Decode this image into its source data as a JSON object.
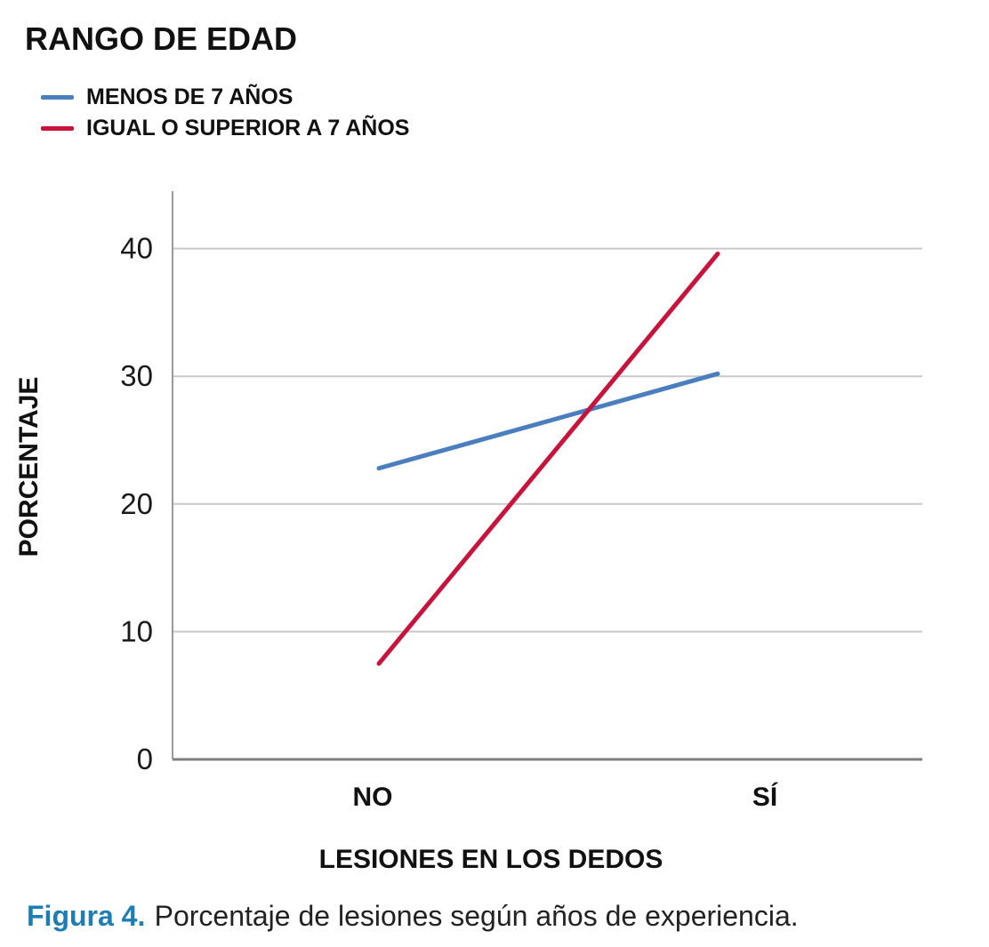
{
  "figure": {
    "caption_prefix": "Figura 4.",
    "caption_text": "Porcentaje de lesiones según años de experiencia."
  },
  "colors": {
    "grid": "#c9c9c9",
    "y_axis": "#9a9a9a",
    "x_axis": "#7e7e7e",
    "caption_accent": "#1e7eb4",
    "series_blue": "#4a7ebd",
    "series_red": "#c8143c"
  },
  "chart_data": {
    "type": "line",
    "title": "RANGO DE EDAD",
    "categories": [
      "NO",
      "SÍ"
    ],
    "series": [
      {
        "name": "MENOS DE 7 AÑOS",
        "color": "#4a7ebd",
        "values": [
          22.8,
          30.2
        ]
      },
      {
        "name": "IGUAL O SUPERIOR A 7 AÑOS",
        "color": "#c8143c",
        "values": [
          7.5,
          39.6
        ]
      }
    ],
    "xlabel": "LESIONES EN LOS DEDOS",
    "ylabel": "PORCENTAJE",
    "yticks": [
      0,
      10,
      20,
      30,
      40
    ],
    "ylim": [
      0,
      44.5
    ],
    "grid": true,
    "legend_position": "top-left"
  }
}
